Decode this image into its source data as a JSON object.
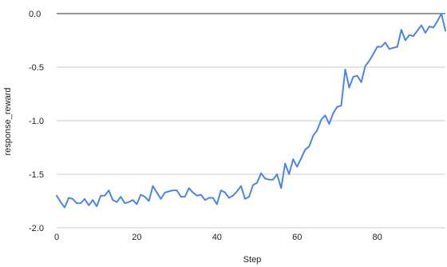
{
  "chart_data": {
    "type": "line",
    "title": "",
    "xlabel": "Step",
    "ylabel": "response_reward",
    "xlim": [
      0,
      97
    ],
    "ylim": [
      -2.0,
      0.0
    ],
    "x_ticks": [
      "0",
      "20",
      "40",
      "60",
      "80"
    ],
    "y_ticks": [
      "0.0",
      "-0.5",
      "-1.0",
      "-1.5",
      "-2.0"
    ],
    "x_tick_values": [
      0,
      20,
      40,
      60,
      80
    ],
    "y_tick_values": [
      0.0,
      -0.5,
      -1.0,
      -1.5,
      -2.0
    ],
    "grid": "horizontal",
    "legend": "none",
    "series": [
      {
        "color": "#4a86e8",
        "x": [
          0,
          1,
          2,
          3,
          4,
          5,
          6,
          7,
          8,
          9,
          10,
          11,
          12,
          13,
          14,
          15,
          16,
          17,
          18,
          19,
          20,
          21,
          22,
          23,
          24,
          25,
          26,
          27,
          28,
          29,
          30,
          31,
          32,
          33,
          34,
          35,
          36,
          37,
          38,
          39,
          40,
          41,
          42,
          43,
          44,
          45,
          46,
          47,
          48,
          49,
          50,
          51,
          52,
          53,
          54,
          55,
          56,
          57,
          58,
          59,
          60,
          61,
          62,
          63,
          64,
          65,
          66,
          67,
          68,
          69,
          70,
          71,
          72,
          73,
          74,
          75,
          76,
          77,
          78,
          79,
          80,
          81,
          82,
          83,
          84,
          85,
          86,
          87,
          88,
          89,
          90,
          91,
          92,
          93,
          94,
          95,
          96,
          97
        ],
        "values": [
          -1.7,
          -1.76,
          -1.81,
          -1.72,
          -1.73,
          -1.77,
          -1.77,
          -1.73,
          -1.79,
          -1.74,
          -1.8,
          -1.7,
          -1.7,
          -1.65,
          -1.74,
          -1.76,
          -1.71,
          -1.77,
          -1.76,
          -1.74,
          -1.78,
          -1.69,
          -1.71,
          -1.75,
          -1.61,
          -1.67,
          -1.73,
          -1.67,
          -1.66,
          -1.65,
          -1.65,
          -1.71,
          -1.71,
          -1.63,
          -1.67,
          -1.7,
          -1.69,
          -1.74,
          -1.72,
          -1.72,
          -1.78,
          -1.65,
          -1.67,
          -1.72,
          -1.7,
          -1.66,
          -1.61,
          -1.73,
          -1.71,
          -1.6,
          -1.58,
          -1.49,
          -1.54,
          -1.55,
          -1.55,
          -1.5,
          -1.63,
          -1.4,
          -1.5,
          -1.36,
          -1.43,
          -1.35,
          -1.27,
          -1.24,
          -1.14,
          -1.09,
          -0.99,
          -0.95,
          -1.03,
          -0.93,
          -0.87,
          -0.86,
          -0.52,
          -0.69,
          -0.59,
          -0.58,
          -0.64,
          -0.49,
          -0.44,
          -0.38,
          -0.31,
          -0.31,
          -0.27,
          -0.33,
          -0.32,
          -0.31,
          -0.15,
          -0.25,
          -0.2,
          -0.21,
          -0.16,
          -0.11,
          -0.18,
          -0.12,
          -0.13,
          -0.07,
          0.0,
          -0.16
        ]
      }
    ]
  }
}
